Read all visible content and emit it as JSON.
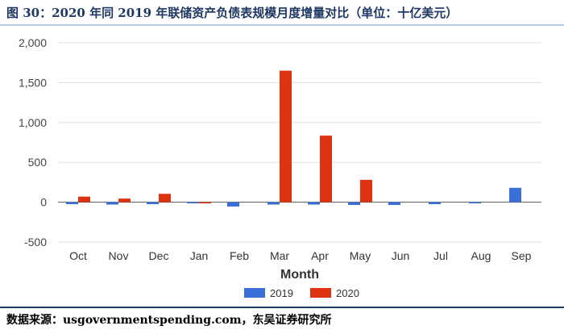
{
  "header": {
    "title": "图 30：2020 年同 2019 年联储资产负债表规模月度增量对比（单位：十亿美元）"
  },
  "footer": {
    "source": "数据来源：usgovernmentspending.com，东吴证券研究所"
  },
  "colors": {
    "series_2019": "#3a6fd8",
    "series_2020": "#dd3311",
    "title": "#1f3864",
    "grid": "#e0e0e0"
  },
  "chart_data": {
    "type": "bar",
    "title": "",
    "xlabel": "Month",
    "ylabel": "",
    "categories": [
      "Oct",
      "Nov",
      "Dec",
      "Jan",
      "Feb",
      "Mar",
      "Apr",
      "May",
      "Jun",
      "Jul",
      "Aug",
      "Sep"
    ],
    "yticks": [
      "2,000",
      "1,500",
      "1,000",
      "500",
      "0",
      "-500"
    ],
    "ytick_values": [
      2000,
      1500,
      1000,
      500,
      0,
      -500
    ],
    "ylim": [
      -500,
      2000
    ],
    "grid": true,
    "legend_position": "bottom",
    "series": [
      {
        "name": "2019",
        "values": [
          -25,
          -30,
          -25,
          -15,
          -55,
          -30,
          -30,
          -35,
          -35,
          -25,
          -10,
          180
        ]
      },
      {
        "name": "2020",
        "values": [
          70,
          45,
          105,
          -15,
          0,
          1650,
          835,
          280,
          0,
          0,
          0,
          0
        ]
      }
    ]
  }
}
